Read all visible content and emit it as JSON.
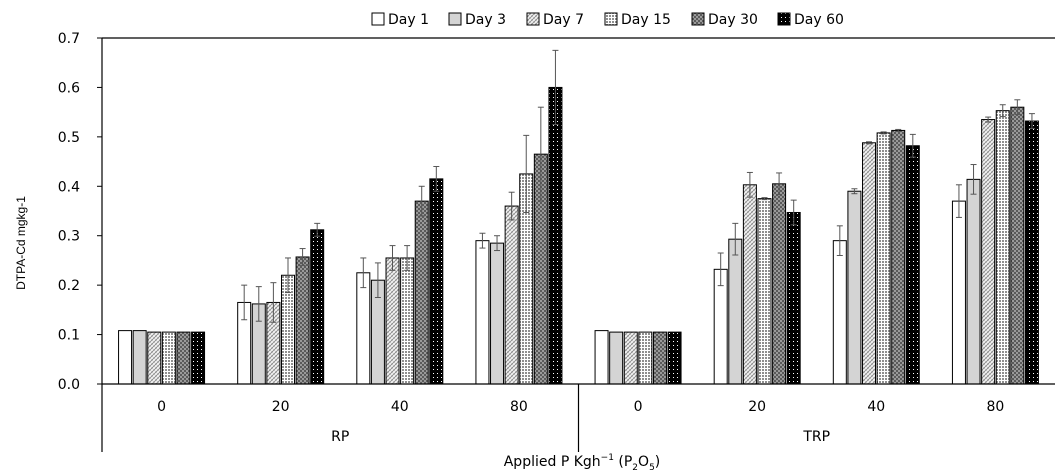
{
  "chart_data": {
    "type": "bar",
    "title": "",
    "ylabel": "DTPA-Cd mgkg-1",
    "xlabel": {
      "main": "Applied P Kgh",
      "sup": "−1",
      "paren_open": " (P",
      "sub1": "2",
      "mid": "O",
      "sub2": "5",
      "paren_close": ")"
    },
    "ylim": [
      0,
      0.7
    ],
    "yticks": [
      "0.0",
      "0.1",
      "0.2",
      "0.3",
      "0.4",
      "0.5",
      "0.6",
      "0.7"
    ],
    "legend_position": "top",
    "grid": false,
    "groups": [
      {
        "name": "RP",
        "categories": [
          "0",
          "20",
          "40",
          "80"
        ]
      },
      {
        "name": "TRP",
        "categories": [
          "0",
          "20",
          "40",
          "80"
        ]
      }
    ],
    "series": [
      {
        "name": "Day 1",
        "pattern": "white",
        "values": [
          0.108,
          0.165,
          0.225,
          0.29,
          0.108,
          0.232,
          0.29,
          0.37
        ],
        "errors": [
          0,
          0.035,
          0.03,
          0.015,
          0,
          0.033,
          0.03,
          0.033
        ]
      },
      {
        "name": "Day 3",
        "pattern": "lightgray",
        "values": [
          0.108,
          0.162,
          0.21,
          0.285,
          0.105,
          0.293,
          0.39,
          0.414
        ],
        "errors": [
          0,
          0.035,
          0.035,
          0.015,
          0,
          0.032,
          0.005,
          0.03
        ]
      },
      {
        "name": "Day 7",
        "pattern": "hatch",
        "values": [
          0.105,
          0.165,
          0.255,
          0.36,
          0.105,
          0.403,
          0.488,
          0.535
        ],
        "errors": [
          0,
          0.04,
          0.025,
          0.028,
          0,
          0.025,
          0.002,
          0.005
        ]
      },
      {
        "name": "Day 15",
        "pattern": "grid",
        "values": [
          0.105,
          0.22,
          0.255,
          0.425,
          0.105,
          0.375,
          0.508,
          0.553
        ],
        "errors": [
          0,
          0.035,
          0.025,
          0.078,
          0,
          0.002,
          0.002,
          0.012
        ]
      },
      {
        "name": "Day 30",
        "pattern": "darkcheck",
        "values": [
          0.105,
          0.257,
          0.37,
          0.465,
          0.105,
          0.405,
          0.513,
          0.56
        ],
        "errors": [
          0,
          0.017,
          0.03,
          0.095,
          0,
          0.022,
          0.002,
          0.015
        ]
      },
      {
        "name": "Day 60",
        "pattern": "black",
        "values": [
          0.105,
          0.312,
          0.415,
          0.6,
          0.105,
          0.347,
          0.482,
          0.532
        ],
        "errors": [
          0,
          0.013,
          0.025,
          0.075,
          0,
          0.025,
          0.023,
          0.015
        ]
      }
    ]
  }
}
